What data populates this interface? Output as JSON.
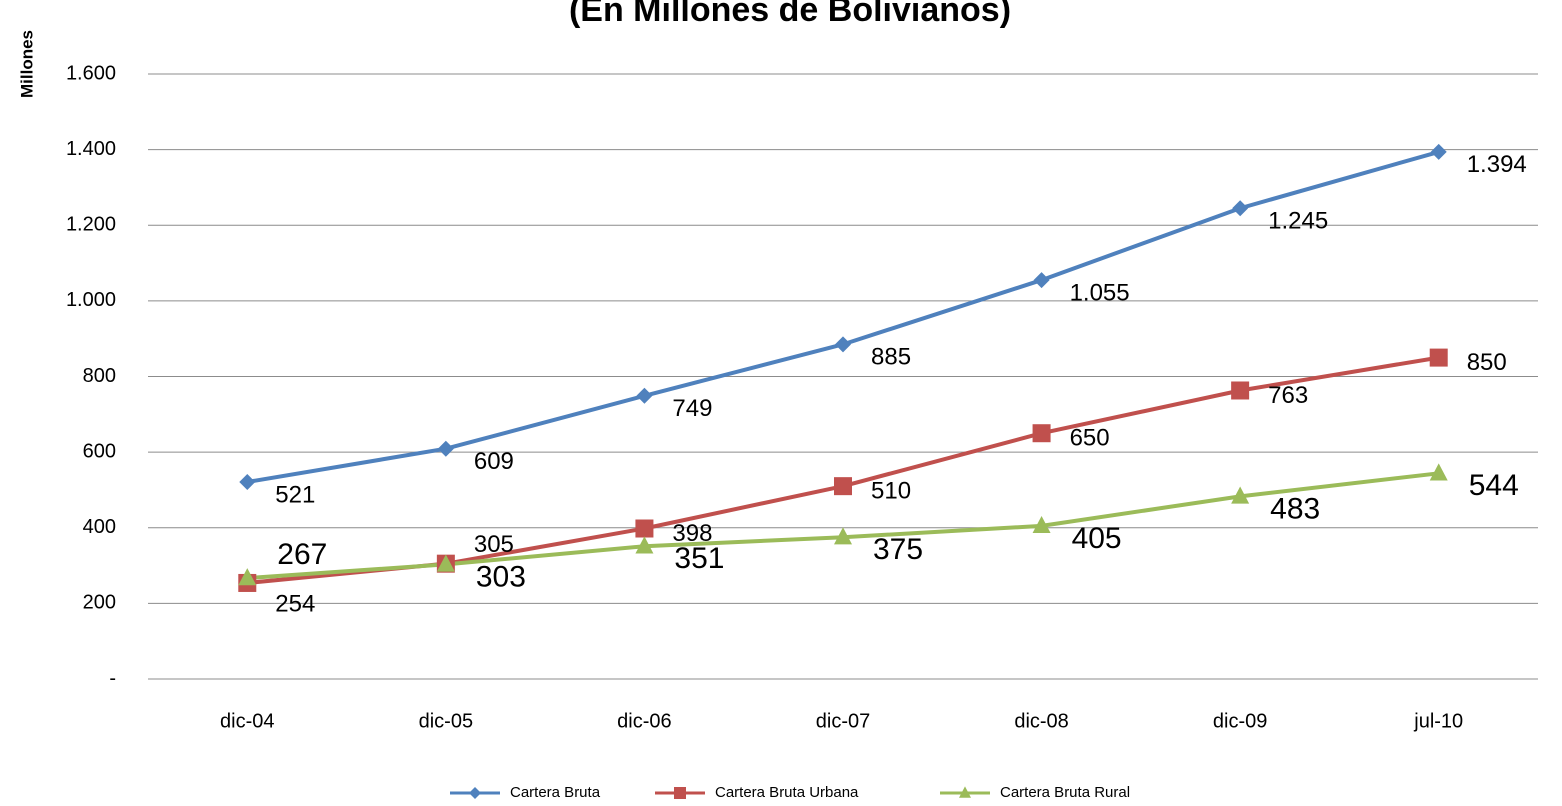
{
  "chart_data": {
    "type": "line",
    "title": "(En Millones de Bolivianos)",
    "y_label": "Millones",
    "categories": [
      "dic-04",
      "dic-05",
      "dic-06",
      "dic-07",
      "dic-08",
      "dic-09",
      "jul-10"
    ],
    "series": [
      {
        "name": "Cartera Bruta",
        "color": "#4f81bd",
        "marker": "diamond",
        "values": [
          521,
          609,
          749,
          885,
          1055,
          1245,
          1394
        ],
        "value_labels": [
          "521",
          "609",
          "749",
          "885",
          "1.055",
          "1.245",
          "1.394"
        ]
      },
      {
        "name": "Cartera Bruta Urbana",
        "color": "#c0504d",
        "marker": "square",
        "values": [
          254,
          305,
          398,
          510,
          650,
          763,
          850
        ]
      },
      {
        "name": "Cartera Bruta Rural",
        "color": "#9bbb59",
        "marker": "triangle",
        "values": [
          267,
          303,
          351,
          375,
          405,
          483,
          544
        ]
      }
    ],
    "ylim": [
      0,
      1600
    ],
    "yticks": [
      {
        "value": 0,
        "label": "-"
      },
      200,
      400,
      600,
      800,
      {
        "value": 1000,
        "label": "1.000"
      },
      {
        "value": 1200,
        "label": "1.200"
      },
      {
        "value": 1400,
        "label": "1.400"
      },
      {
        "value": 1600,
        "label": "1.600"
      }
    ],
    "grid": true,
    "legend": "bottom"
  }
}
